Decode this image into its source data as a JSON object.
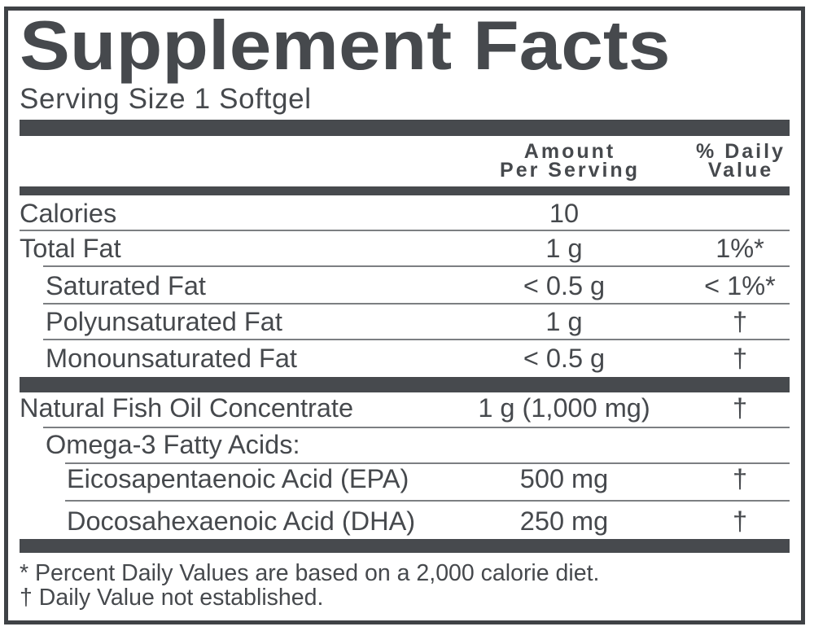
{
  "title": "Supplement Facts",
  "serving_size": "Serving Size 1 Softgel",
  "column_headers": {
    "amount_line1": "Amount",
    "amount_line2": "Per Serving",
    "daily_value_line1": "% Daily",
    "daily_value_line2": "Value"
  },
  "rows": [
    {
      "name": "Calories",
      "amount": "10",
      "daily_value": "",
      "indent": 0
    },
    {
      "name": "Total Fat",
      "amount": "1 g",
      "daily_value": "1%*",
      "indent": 0
    },
    {
      "name": "Saturated Fat",
      "amount": "< 0.5 g",
      "daily_value": "< 1%*",
      "indent": 1
    },
    {
      "name": "Polyunsaturated Fat",
      "amount": "1 g",
      "daily_value": "†",
      "indent": 1
    },
    {
      "name": "Monounsaturated Fat",
      "amount": "< 0.5 g",
      "daily_value": "†",
      "indent": 1
    },
    {
      "name": "Natural Fish Oil Concentrate",
      "amount": "1 g (1,000 mg)",
      "daily_value": "†",
      "indent": 0
    },
    {
      "name": "Omega-3 Fatty Acids:",
      "amount": "",
      "daily_value": "",
      "indent": 1
    },
    {
      "name": "Eicosapentaenoic Acid (EPA)",
      "amount": "500 mg",
      "daily_value": "†",
      "indent": 2
    },
    {
      "name": "Docosahexaenoic Acid (DHA)",
      "amount": "250 mg",
      "daily_value": "†",
      "indent": 2
    }
  ],
  "footnotes": [
    "* Percent Daily Values are based on a 2,000 calorie diet.",
    "† Daily Value not established."
  ],
  "colors": {
    "ink": "#46494d",
    "bar": "#474a4e",
    "separator": "#7c7f82",
    "border": "#3f4246",
    "background": "#ffffff"
  }
}
